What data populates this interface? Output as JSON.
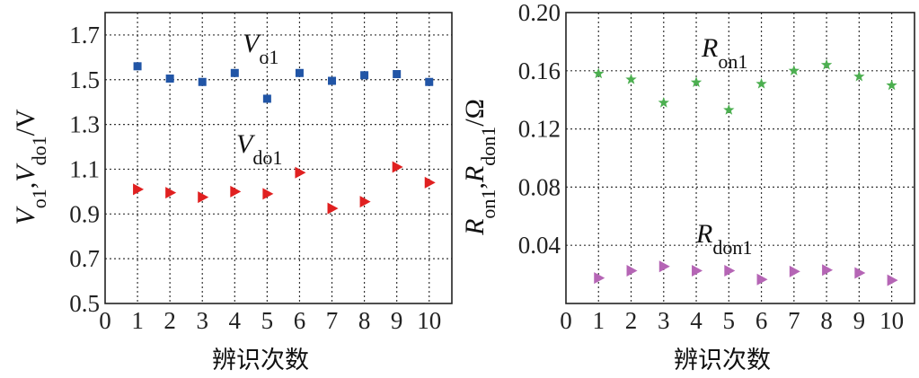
{
  "chart_data": [
    {
      "type": "scatter",
      "xlabel": "辨识次数",
      "ylabel": {
        "main": "V",
        "sub1": "o1",
        "sep": ",",
        "main2": "V",
        "sub2": "do1",
        "unit": "/V"
      },
      "xlim": [
        0,
        10.7
      ],
      "ylim": [
        0.5,
        1.8
      ],
      "xticks": [
        "0",
        "1",
        "2",
        "3",
        "4",
        "5",
        "6",
        "7",
        "8",
        "9",
        "10"
      ],
      "yticks": [
        "0.5",
        "0.7",
        "0.9",
        "1.1",
        "1.3",
        "1.5",
        "1.7"
      ],
      "grid": true,
      "x": [
        1,
        2,
        3,
        4,
        5,
        6,
        7,
        8,
        9,
        10
      ],
      "series": [
        {
          "name": "Vo1",
          "label_main": "V",
          "label_sub": "o1",
          "marker": "square",
          "color": "#2155a6",
          "values": [
            1.56,
            1.505,
            1.49,
            1.53,
            1.415,
            1.53,
            1.495,
            1.52,
            1.525,
            1.49
          ]
        },
        {
          "name": "Vdo1",
          "label_main": "V",
          "label_sub": "do1",
          "marker": "triangle-right",
          "color": "#e02020",
          "values": [
            1.01,
            0.995,
            0.975,
            1.0,
            0.99,
            1.085,
            0.925,
            0.955,
            1.11,
            1.04
          ]
        }
      ]
    },
    {
      "type": "scatter",
      "xlabel": "辨识次数",
      "ylabel": {
        "main": "R",
        "sub1": "on1",
        "sep": ",",
        "main2": "R",
        "sub2": "don1",
        "unit": "/Ω"
      },
      "xlim": [
        0,
        10.7
      ],
      "ylim": [
        0.0,
        0.2
      ],
      "xticks": [
        "0",
        "1",
        "2",
        "3",
        "4",
        "5",
        "6",
        "7",
        "8",
        "9",
        "10"
      ],
      "yticks": [
        "0.04",
        "0.08",
        "0.12",
        "0.16",
        "0.20"
      ],
      "grid": true,
      "x": [
        1,
        2,
        3,
        4,
        5,
        6,
        7,
        8,
        9,
        10
      ],
      "series": [
        {
          "name": "Ron1",
          "label_main": "R",
          "label_sub": "on1",
          "marker": "star",
          "color": "#4caf50",
          "values": [
            0.158,
            0.154,
            0.138,
            0.152,
            0.133,
            0.151,
            0.16,
            0.164,
            0.156,
            0.15
          ]
        },
        {
          "name": "Rdon1",
          "label_main": "R",
          "label_sub": "don1",
          "marker": "triangle-right",
          "color": "#b565b5",
          "values": [
            0.0175,
            0.0225,
            0.0255,
            0.0225,
            0.0225,
            0.0165,
            0.022,
            0.023,
            0.021,
            0.016
          ]
        }
      ]
    }
  ]
}
